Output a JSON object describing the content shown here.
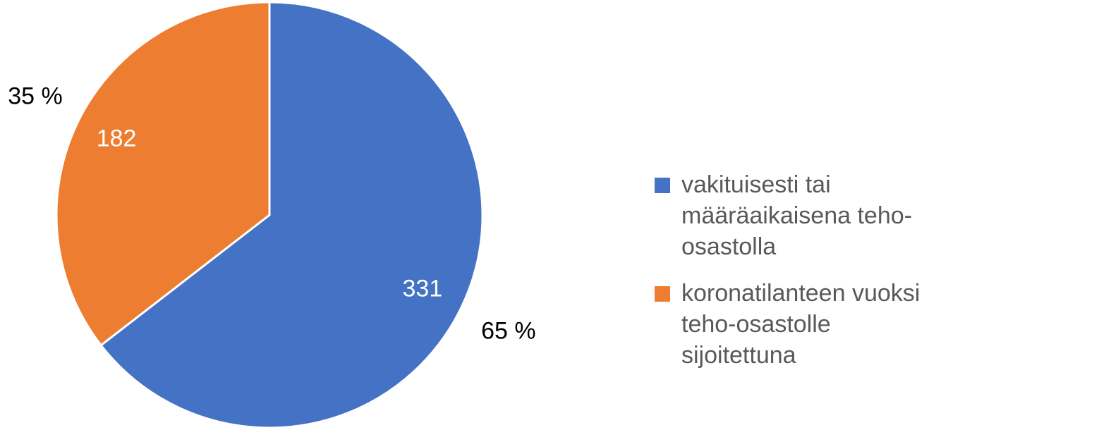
{
  "chart_data": {
    "type": "pie",
    "categories": [
      "vakituisesti tai määräaikaisena teho-osastolla",
      "koronatilanteen vuoksi teho-osastolle sijoitettuna"
    ],
    "values": [
      331,
      182
    ],
    "percentages": [
      65,
      35
    ],
    "percentage_labels": [
      "65 %",
      "35 %"
    ],
    "colors": [
      "#4472c4",
      "#ed7d31"
    ],
    "start_angle": 0,
    "direction": "clockwise",
    "legend": "right"
  }
}
